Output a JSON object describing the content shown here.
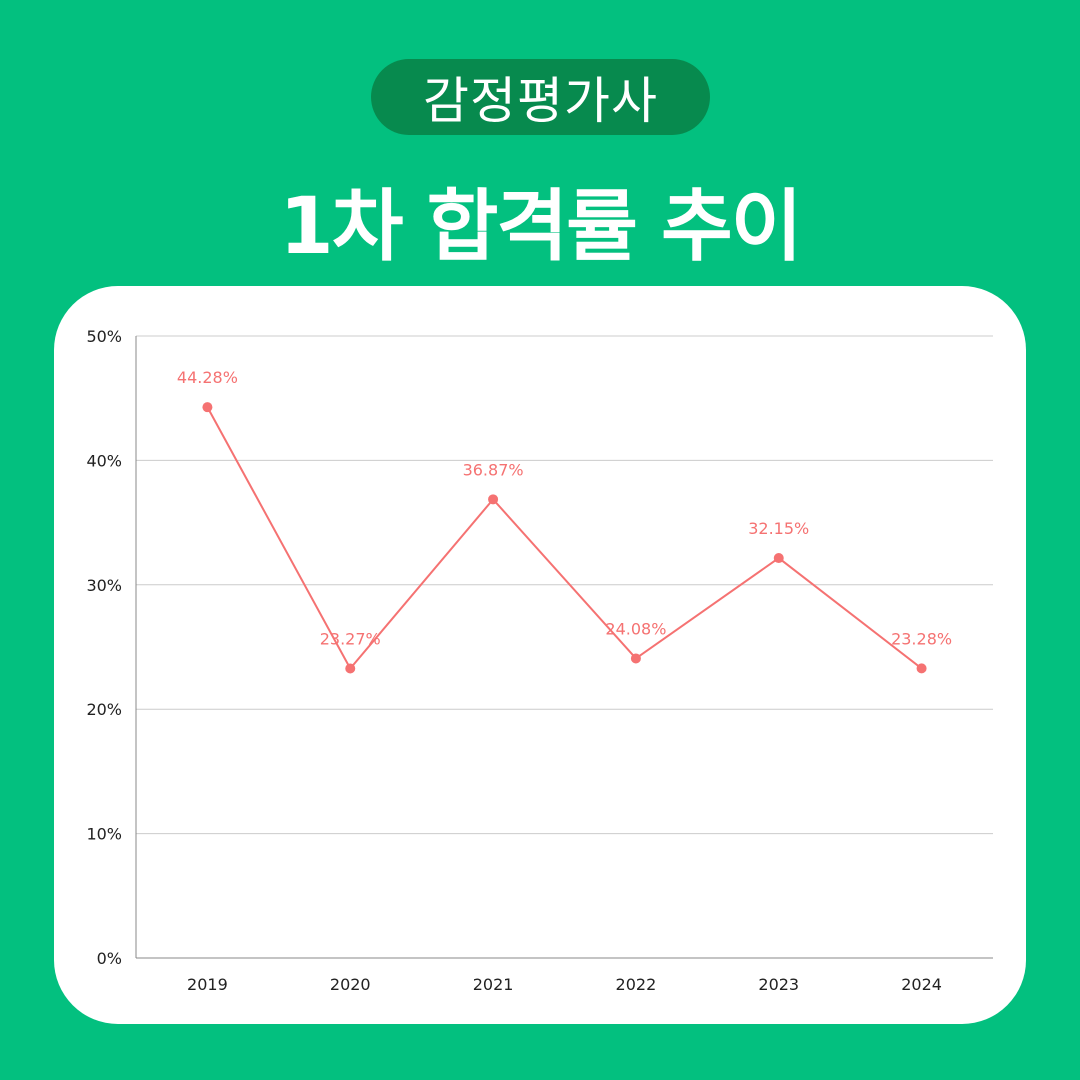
{
  "badge": "감정평가사",
  "headline": "1차 합격률 추이",
  "colors": {
    "background": "#03c07f",
    "badge": "#078a4e",
    "line": "#f57272",
    "gridline": "#cccccc"
  },
  "chart_data": {
    "type": "line",
    "categories": [
      "2019",
      "2020",
      "2021",
      "2022",
      "2023",
      "2024"
    ],
    "series": [
      {
        "values": [
          44.28,
          23.27,
          36.87,
          24.08,
          32.15,
          23.28
        ],
        "labels": [
          "44.28%",
          "23.27%",
          "36.87%",
          "24.08%",
          "32.15%",
          "23.28%"
        ]
      }
    ],
    "yticks": [
      0,
      10,
      20,
      30,
      40,
      50
    ],
    "ytick_labels": [
      "0%",
      "10%",
      "20%",
      "30%",
      "40%",
      "50%"
    ],
    "ylim": [
      0,
      50
    ],
    "grid": true,
    "legend": "none",
    "title": "",
    "xlabel": "",
    "ylabel": ""
  }
}
